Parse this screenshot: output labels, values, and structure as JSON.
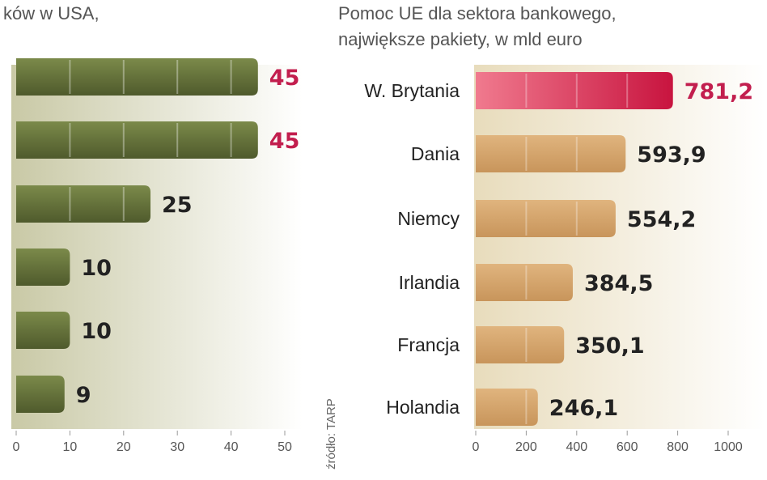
{
  "colors": {
    "left_bar_top": "#7b8a4a",
    "left_bar_bottom": "#4f5a2c",
    "right_bar_top": "#e0b47e",
    "right_bar_bottom": "#c8955b",
    "highlight_top": "#f07a8e",
    "highlight_bottom": "#c8143f",
    "highlight_text": "#c21e4e",
    "panel_left": "#c9c9a6",
    "panel_right": "#ffffff",
    "right_panel_left": "#e8dcbc"
  },
  "source_label": "źródło: TARP",
  "chart_data": [
    {
      "type": "bar",
      "orientation": "horizontal",
      "title": "ków w USA,",
      "categories": [
        "",
        "",
        "",
        "",
        "",
        ""
      ],
      "values": [
        45,
        45,
        25,
        10,
        10,
        9
      ],
      "value_labels": [
        "45",
        "45",
        "25",
        "10",
        "10",
        "9"
      ],
      "highlighted": [
        true,
        true,
        false,
        false,
        false,
        false
      ],
      "xticks": [
        "0",
        "10",
        "20",
        "30",
        "40",
        "50"
      ],
      "xlim": [
        0,
        50
      ],
      "grid": true
    },
    {
      "type": "bar",
      "orientation": "horizontal",
      "title": "Pomoc UE dla sektora bankowego,",
      "subtitle": "największe pakiety, w mld euro",
      "categories": [
        "W. Brytania",
        "Dania",
        "Niemcy",
        "Irlandia",
        "Francja",
        "Holandia"
      ],
      "values": [
        781.2,
        593.9,
        554.2,
        384.5,
        350.1,
        246.1
      ],
      "value_labels": [
        "781,2",
        "593,9",
        "554,2",
        "384,5",
        "350,1",
        "246,1"
      ],
      "highlighted": [
        true,
        false,
        false,
        false,
        false,
        false
      ],
      "xticks": [
        "0",
        "200",
        "400",
        "600",
        "800",
        "1000"
      ],
      "xlim": [
        0,
        1000
      ],
      "grid": true
    }
  ]
}
